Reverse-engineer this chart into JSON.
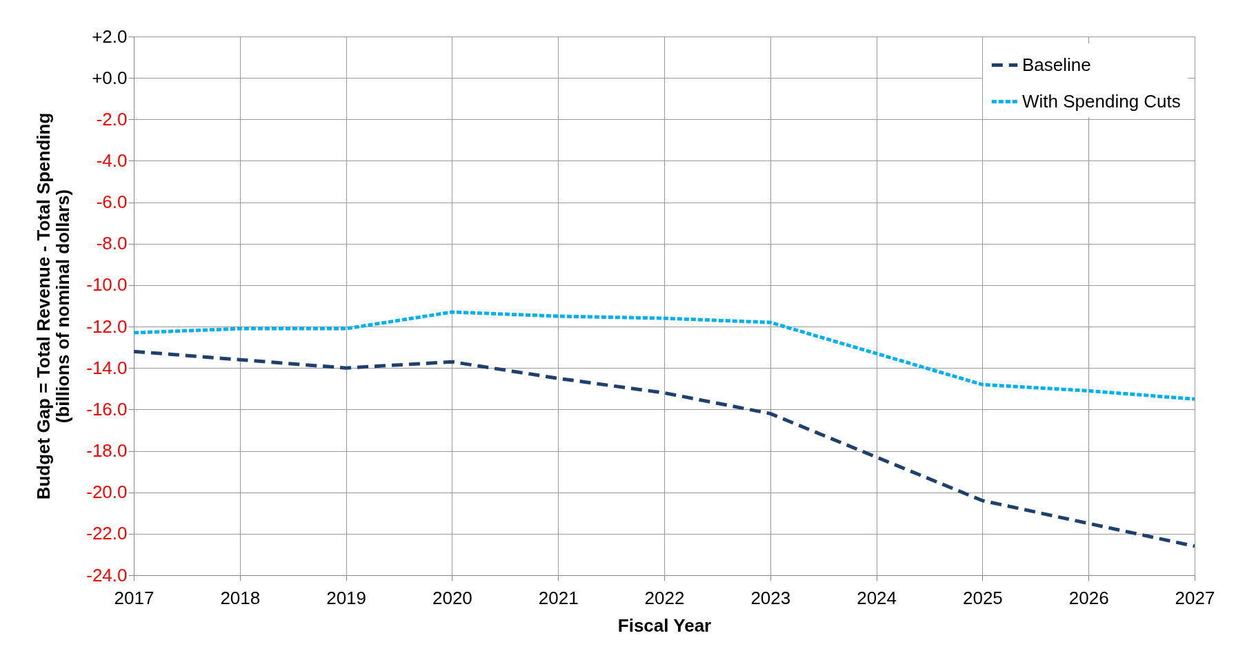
{
  "chart_data": {
    "type": "line",
    "xlabel": "Fiscal Year",
    "ylabel": "Budget Gap = Total Revenue - Total Spending\n(billions of nominal dollars)",
    "x": [
      2017,
      2018,
      2019,
      2020,
      2021,
      2022,
      2023,
      2024,
      2025,
      2026,
      2027
    ],
    "series": [
      {
        "name": "Baseline",
        "color": "#1f3f6e",
        "line_style": "dashed",
        "values": [
          -13.2,
          -13.6,
          -14.0,
          -13.7,
          -14.5,
          -15.2,
          -16.2,
          -18.3,
          -20.4,
          -21.5,
          -22.6
        ]
      },
      {
        "name": "With Spending Cuts",
        "color": "#00b0f0",
        "line_style": "dotted",
        "values": [
          -12.3,
          -12.1,
          -12.1,
          -11.3,
          -11.5,
          -11.6,
          -11.8,
          -13.3,
          -14.8,
          -15.1,
          -15.5
        ]
      }
    ],
    "xlim": [
      2017,
      2027
    ],
    "xticks": [
      2017,
      2018,
      2019,
      2020,
      2021,
      2022,
      2023,
      2024,
      2025,
      2026,
      2027
    ],
    "ylim": [
      -24,
      2
    ],
    "yticks": [
      {
        "value": 2,
        "label": "+2.0"
      },
      {
        "value": 0,
        "label": "+0.0"
      },
      {
        "value": -2,
        "label": "-2.0"
      },
      {
        "value": -4,
        "label": "-4.0"
      },
      {
        "value": -6,
        "label": "-6.0"
      },
      {
        "value": -8,
        "label": "-8.0"
      },
      {
        "value": -10,
        "label": "-10.0"
      },
      {
        "value": -12,
        "label": "-12.0"
      },
      {
        "value": -14,
        "label": "-14.0"
      },
      {
        "value": -16,
        "label": "-16.0"
      },
      {
        "value": -18,
        "label": "-18.0"
      },
      {
        "value": -20,
        "label": "-20.0"
      },
      {
        "value": -22,
        "label": "-22.0"
      },
      {
        "value": -24,
        "label": "-24.0"
      }
    ],
    "grid": true,
    "legend": "top right",
    "marker": "none"
  }
}
